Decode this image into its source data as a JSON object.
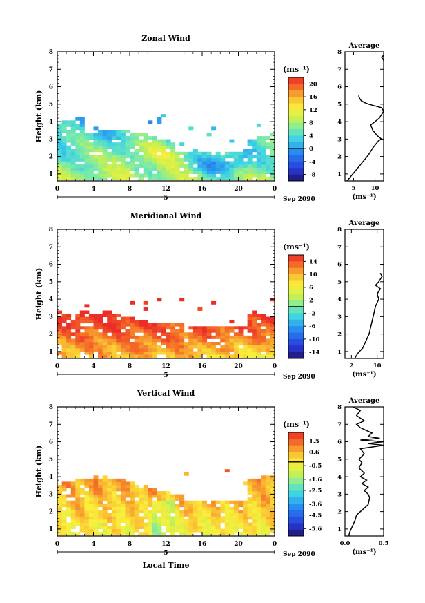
{
  "figure": {
    "date_label": "Sep 2090",
    "day_label": "5",
    "xlabel": "Local Time",
    "ylabel": "Height (km)"
  },
  "chart_data": [
    {
      "type": "heatmap",
      "title": "Zonal Wind",
      "xlabel": "Local Time",
      "ylabel": "Height (km)",
      "x_ticks": [
        "0",
        "4",
        "8",
        "12",
        "16",
        "20",
        "0"
      ],
      "xlim": [
        0,
        24
      ],
      "y_ticks": [
        "1",
        "2",
        "3",
        "4",
        "5",
        "6",
        "7",
        "8"
      ],
      "ylim": [
        0.6,
        8
      ],
      "colorbar": {
        "unit": "(ms⁻¹)",
        "ticks": [
          "20",
          "16",
          "12",
          "8",
          "4",
          "0",
          "-4",
          "-8"
        ],
        "range": [
          -10,
          22
        ],
        "zero_value": 0
      },
      "average_panel": {
        "title": "Average",
        "xlabel": "(ms⁻¹)",
        "x_ticks": [
          "5",
          "10"
        ],
        "xlim": [
          3,
          12
        ],
        "profile": [
          [
            3.5,
            0.6
          ],
          [
            4.5,
            0.9
          ],
          [
            5.5,
            1.2
          ],
          [
            6.5,
            1.5
          ],
          [
            7.5,
            1.8
          ],
          [
            8.5,
            2.1
          ],
          [
            9.5,
            2.5
          ],
          [
            10.8,
            2.9
          ],
          [
            11.5,
            3.0
          ],
          [
            10.5,
            3.2
          ],
          [
            9.5,
            3.5
          ],
          [
            9.0,
            3.8
          ],
          [
            10.0,
            4.0
          ],
          [
            11.0,
            4.2
          ],
          [
            11.5,
            4.4
          ],
          [
            12.0,
            4.6
          ],
          [
            11.5,
            4.8
          ],
          [
            10.0,
            4.9
          ],
          [
            8.5,
            5.0
          ],
          [
            7.5,
            5.1
          ],
          [
            6.8,
            5.2
          ],
          [
            6.5,
            5.3
          ],
          [
            6.3,
            5.4
          ],
          [
            6.2,
            5.5
          ]
        ],
        "top_fragment": [
          [
            12.0,
            7.8
          ],
          [
            11.5,
            7.7
          ],
          [
            11.8,
            7.6
          ],
          [
            12.0,
            7.5
          ]
        ]
      }
    },
    {
      "type": "heatmap",
      "title": "Meridional Wind",
      "xlabel": "Local Time",
      "ylabel": "Height (km)",
      "x_ticks": [
        "0",
        "4",
        "8",
        "12",
        "16",
        "20",
        "0"
      ],
      "xlim": [
        0,
        24
      ],
      "y_ticks": [
        "1",
        "2",
        "3",
        "4",
        "5",
        "6",
        "7",
        "8"
      ],
      "ylim": [
        0.6,
        8
      ],
      "colorbar": {
        "unit": "(ms⁻¹)",
        "ticks": [
          "14",
          "10",
          "6",
          "2",
          "-2",
          "-6",
          "-10",
          "-14"
        ],
        "range": [
          -16,
          16
        ],
        "zero_value": 0
      },
      "average_panel": {
        "title": "Average",
        "xlabel": "(ms⁻¹)",
        "x_ticks": [
          "2",
          "10"
        ],
        "xlim": [
          0,
          12
        ],
        "profile": [
          [
            3.0,
            0.6
          ],
          [
            4.0,
            0.9
          ],
          [
            5.5,
            1.2
          ],
          [
            6.5,
            1.6
          ],
          [
            7.5,
            2.0
          ],
          [
            8.0,
            2.4
          ],
          [
            8.5,
            2.8
          ],
          [
            9.0,
            3.2
          ],
          [
            9.5,
            3.6
          ],
          [
            10.5,
            4.0
          ],
          [
            10.0,
            4.3
          ],
          [
            11.0,
            4.6
          ],
          [
            9.5,
            4.8
          ],
          [
            10.5,
            5.0
          ],
          [
            11.5,
            5.3
          ],
          [
            11.0,
            5.5
          ]
        ]
      }
    },
    {
      "type": "heatmap",
      "title": "Vertical Wind",
      "xlabel": "Local Time",
      "ylabel": "Height (km)",
      "x_ticks": [
        "0",
        "4",
        "8",
        "12",
        "16",
        "20",
        "0"
      ],
      "xlim": [
        0,
        24
      ],
      "y_ticks": [
        "1",
        "2",
        "3",
        "4",
        "5",
        "6",
        "7",
        "8"
      ],
      "ylim": [
        0.6,
        8
      ],
      "colorbar": {
        "unit": "(ms⁻¹)",
        "ticks": [
          "1.5",
          "0.6",
          "-0.5",
          "-1.6",
          "-2.5",
          "-3.6",
          "-4.5",
          "-5.6"
        ],
        "range": [
          -6.2,
          2.2
        ],
        "zero_value": -0.2
      },
      "average_panel": {
        "title": "Average",
        "xlabel": "(ms⁻¹)",
        "x_ticks": [
          "0.0",
          "0.5"
        ],
        "xlim": [
          0,
          0.5
        ],
        "profile": [
          [
            0.05,
            0.6
          ],
          [
            0.06,
            0.8
          ],
          [
            0.1,
            1.2
          ],
          [
            0.13,
            1.5
          ],
          [
            0.15,
            1.8
          ],
          [
            0.2,
            2.0
          ],
          [
            0.25,
            2.2
          ],
          [
            0.3,
            2.4
          ],
          [
            0.32,
            2.8
          ],
          [
            0.3,
            3.0
          ],
          [
            0.25,
            3.2
          ],
          [
            0.3,
            3.4
          ],
          [
            0.22,
            3.6
          ],
          [
            0.28,
            3.8
          ],
          [
            0.2,
            4.0
          ],
          [
            0.25,
            4.2
          ],
          [
            0.18,
            4.5
          ],
          [
            0.22,
            4.8
          ],
          [
            0.18,
            5.0
          ],
          [
            0.25,
            5.3
          ],
          [
            0.2,
            5.6
          ],
          [
            0.5,
            5.8
          ],
          [
            0.3,
            5.9
          ],
          [
            0.5,
            6.0
          ],
          [
            0.2,
            6.1
          ],
          [
            0.45,
            6.2
          ],
          [
            0.3,
            6.3
          ],
          [
            0.35,
            6.5
          ],
          [
            0.2,
            6.8
          ],
          [
            0.15,
            7.0
          ],
          [
            0.25,
            7.2
          ],
          [
            0.15,
            7.5
          ],
          [
            0.2,
            7.8
          ],
          [
            0.1,
            8.0
          ]
        ]
      }
    }
  ]
}
